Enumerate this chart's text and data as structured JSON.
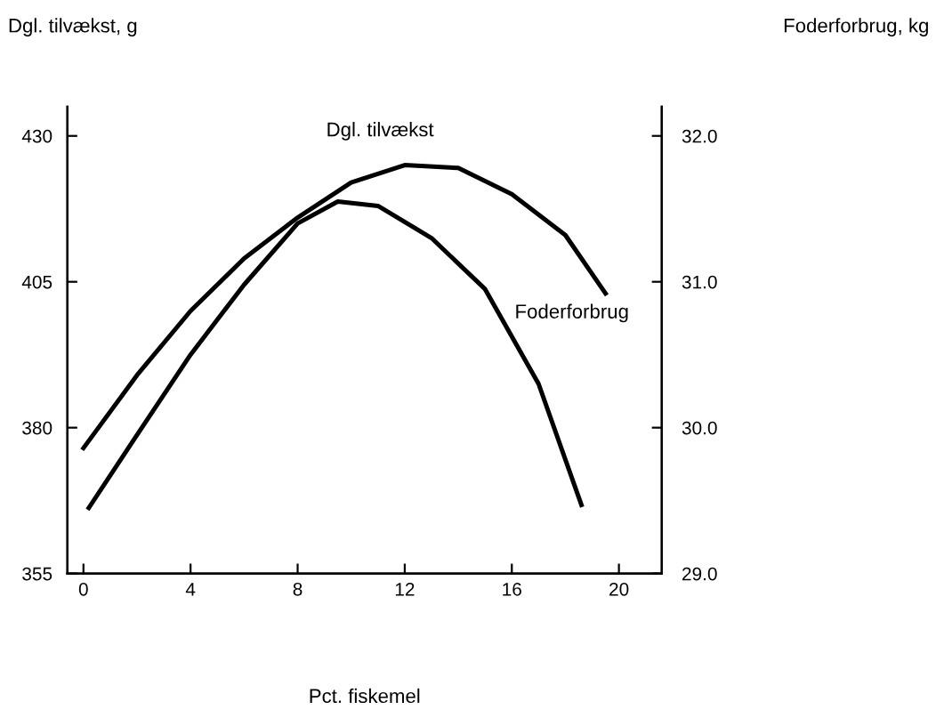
{
  "chart_data": {
    "type": "line",
    "xlabel": "Pct. fiskemel",
    "ylabel": "Dgl. tilvækst, g",
    "y2label": "Foderforbrug, kg",
    "series": [
      {
        "name": "Dgl. tilvækst",
        "color": "#000000",
        "x": [
          0,
          2,
          4,
          6,
          8,
          10,
          12,
          14,
          16,
          18,
          19.5
        ],
        "values": [
          376.5,
          389,
          400,
          409,
          416,
          422,
          425,
          424.5,
          420,
          413,
          403
        ]
      },
      {
        "name": "Foderforbrug",
        "color": "#000000",
        "axis": "y2",
        "x": [
          0.2,
          2,
          4,
          6,
          8,
          9.5,
          11,
          13,
          15,
          17,
          18.6
        ],
        "values": [
          29.45,
          29.95,
          30.5,
          30.98,
          31.4,
          31.55,
          31.52,
          31.3,
          30.95,
          30.3,
          29.47
        ]
      }
    ],
    "xlim": [
      -0.6,
      21.6
    ],
    "xticks": [
      0,
      4,
      8,
      12,
      16,
      20
    ],
    "ylim": [
      355,
      435
    ],
    "yticks": [
      355,
      380,
      405,
      430
    ],
    "y2lim": [
      29.0,
      32.2
    ],
    "y2ticks": [
      {
        "value": 29,
        "label": "29.0"
      },
      {
        "value": 30,
        "label": "30.0"
      },
      {
        "value": 31,
        "label": "31.0"
      },
      {
        "value": 32,
        "label": "32.0"
      }
    ],
    "grid": false,
    "legend": false,
    "marker": "none",
    "line_style": "solid"
  }
}
